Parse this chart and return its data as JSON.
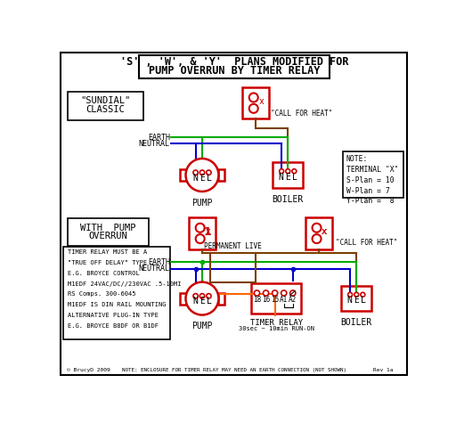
{
  "title_line1": "'S' , 'W', & 'Y'  PLANS MODIFIED FOR",
  "title_line2": "PUMP OVERRUN BY TIMER RELAY",
  "bg_color": "#ffffff",
  "text_color": "#000000",
  "red": "#cc0000",
  "green": "#00aa00",
  "blue": "#0000cc",
  "brown": "#7B4000",
  "sundial_label1": "\"SUNDIAL\"",
  "sundial_label2": "CLASSIC",
  "note_text": "NOTE:\nTERMINAL \"X\"\nS-Plan = 10\nW-Plan = 7\nY-Plan =  8",
  "with_pump_overrun1": "WITH  PUMP",
  "with_pump_overrun2": "OVERRUN",
  "timer_relay_note": "NOTE: ENCLOSURE FOR TIMER RELAY MAY NEED AN EARTH CONNECTION (NOT SHOWN)",
  "timer_relay_info_lines": [
    "TIMER RELAY MUST BE A",
    "\"TRUE OFF DELAY\" TYPE",
    "E.G. BROYCE CONTROL",
    "M1EDF 24VAC/DC//230VAC .5-10MI",
    "RS Comps. 300-6045",
    "M1EDF IS DIN RAIL MOUNTING",
    "ALTERNATIVE PLUG-IN TYPE",
    "E.G. BROYCE B8DF OR B1DF"
  ],
  "perm_live": "PERMANENT LIVE",
  "call_for_heat_top": "\"CALL FOR HEAT\"",
  "call_for_heat_bot": "\"CALL FOR HEAT\"",
  "footer_left": "© BrucyD 2009",
  "footer_right": "Rev 1a"
}
